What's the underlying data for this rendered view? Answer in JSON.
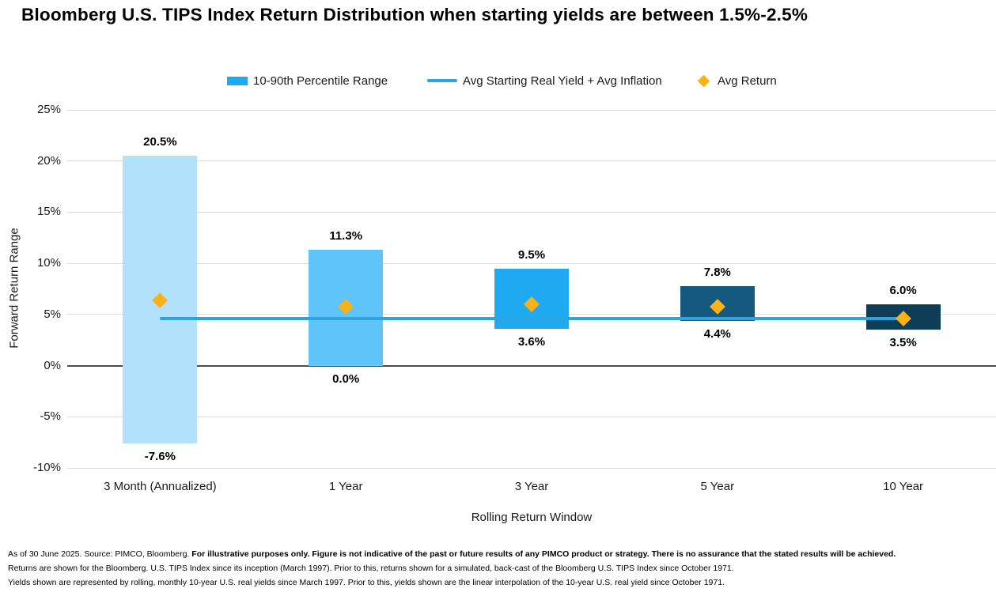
{
  "title": "Bloomberg U.S. TIPS Index Return Distribution when starting yields are between 1.5%-2.5%",
  "legend": {
    "items": [
      {
        "label": "10-90th Percentile Range",
        "swatch": "bar",
        "color": "#1FA9F0"
      },
      {
        "label": "Avg Starting Real Yield + Avg Inflation",
        "swatch": "line",
        "color": "#2AA5E1"
      },
      {
        "label": "Avg Return",
        "swatch": "diamond",
        "color": "#FCB216"
      }
    ]
  },
  "chart_data": {
    "type": "bar",
    "subtype": "floating-range-bar",
    "title": "Bloomberg U.S. TIPS Index Return Distribution when starting yields are between 1.5%-2.5%",
    "categories": [
      "3 Month (Annualized)",
      "1 Year",
      "3 Year",
      "5 Year",
      "10 Year"
    ],
    "xlabel": "Rolling Return Window",
    "ylabel": "Forward Return Range",
    "ylim": [
      -10,
      25
    ],
    "yticks": [
      25,
      20,
      15,
      10,
      5,
      0,
      -5,
      -10
    ],
    "ytick_suffix": "%",
    "grid": true,
    "legend_position": "top",
    "series": [
      {
        "name": "10-90th Percentile Range",
        "type": "range-bar",
        "low": [
          -7.6,
          0.0,
          3.6,
          4.4,
          3.5
        ],
        "high": [
          20.5,
          11.3,
          9.5,
          7.8,
          6.0
        ],
        "bar_colors": [
          "#B2E1FB",
          "#5FC4FA",
          "#1FA9F0",
          "#14597F",
          "#0E3D58"
        ]
      },
      {
        "name": "Avg Starting Real Yield + Avg Inflation",
        "type": "line",
        "value": 4.6,
        "color": "#2AA5E1"
      },
      {
        "name": "Avg Return",
        "type": "scatter",
        "marker": "diamond",
        "values": [
          6.4,
          5.8,
          6.0,
          5.8,
          4.6
        ],
        "color": "#FCB216"
      }
    ],
    "labels_high": [
      "20.5%",
      "11.3%",
      "9.5%",
      "7.8%",
      "6.0%"
    ],
    "labels_low": [
      "-7.6%",
      "0.0%",
      "3.6%",
      "4.4%",
      "3.5%"
    ],
    "colors": {
      "grid": "#DCDCDC",
      "zero_axis": "#4D4D4D"
    }
  },
  "footer": {
    "line1_regular": "As of 30 June 2025. Source: PIMCO, Bloomberg. ",
    "line1_bold": "For illustrative purposes only. Figure is not indicative of the past or future results of any PIMCO product or strategy. There is no assurance that the stated results will be achieved.",
    "line2": "Returns are shown for the Bloomberg. U.S. TIPS Index since its inception (March 1997). Prior to this, returns shown for a simulated, back-cast of the Bloomberg U.S. TIPS Index since October 1971.",
    "line3": "Yields shown are represented by rolling, monthly 10-year U.S. real yields since March 1997. Prior to this, yields shown are the linear interpolation of the 10-year U.S. real yield since October 1971."
  }
}
